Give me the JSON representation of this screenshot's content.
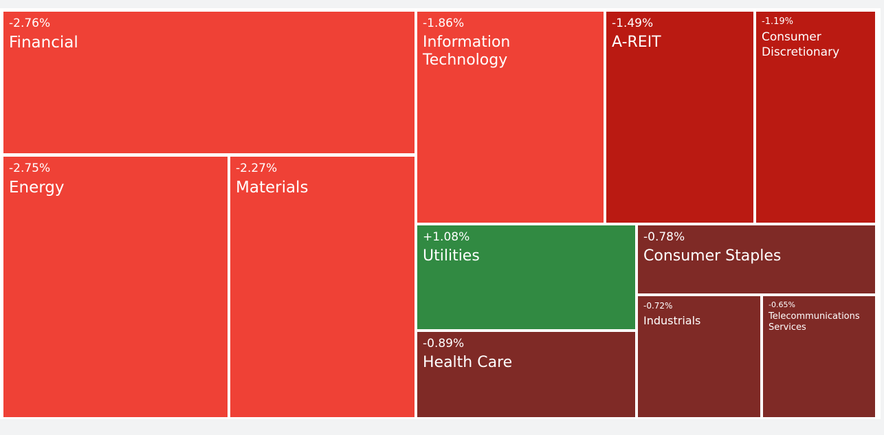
{
  "chart_data": {
    "type": "treemap",
    "colors": {
      "strong_negative": "#ef4136",
      "medium_negative": "#ba1a12",
      "mild_negative": "#7f2a26",
      "positive": "#318a42"
    },
    "sectors": [
      {
        "name": "Financial",
        "change": "-2.76%",
        "value": -2.76,
        "color_group": "strong_negative"
      },
      {
        "name": "Energy",
        "change": "-2.75%",
        "value": -2.75,
        "color_group": "strong_negative"
      },
      {
        "name": "Materials",
        "change": "-2.27%",
        "value": -2.27,
        "color_group": "strong_negative"
      },
      {
        "name": "Information Technology",
        "change": "-1.86%",
        "value": -1.86,
        "color_group": "strong_negative"
      },
      {
        "name": "A-REIT",
        "change": "-1.49%",
        "value": -1.49,
        "color_group": "medium_negative"
      },
      {
        "name": "Consumer Discretionary",
        "change": "-1.19%",
        "value": -1.19,
        "color_group": "medium_negative"
      },
      {
        "name": "Utilities",
        "change": "+1.08%",
        "value": 1.08,
        "color_group": "positive"
      },
      {
        "name": "Consumer Staples",
        "change": "-0.78%",
        "value": -0.78,
        "color_group": "mild_negative"
      },
      {
        "name": "Health Care",
        "change": "-0.89%",
        "value": -0.89,
        "color_group": "mild_negative"
      },
      {
        "name": "Industrials",
        "change": "-0.72%",
        "value": -0.72,
        "color_group": "mild_negative"
      },
      {
        "name": "Telecommunications Services",
        "change": "-0.65%",
        "value": -0.65,
        "color_group": "mild_negative"
      }
    ]
  }
}
